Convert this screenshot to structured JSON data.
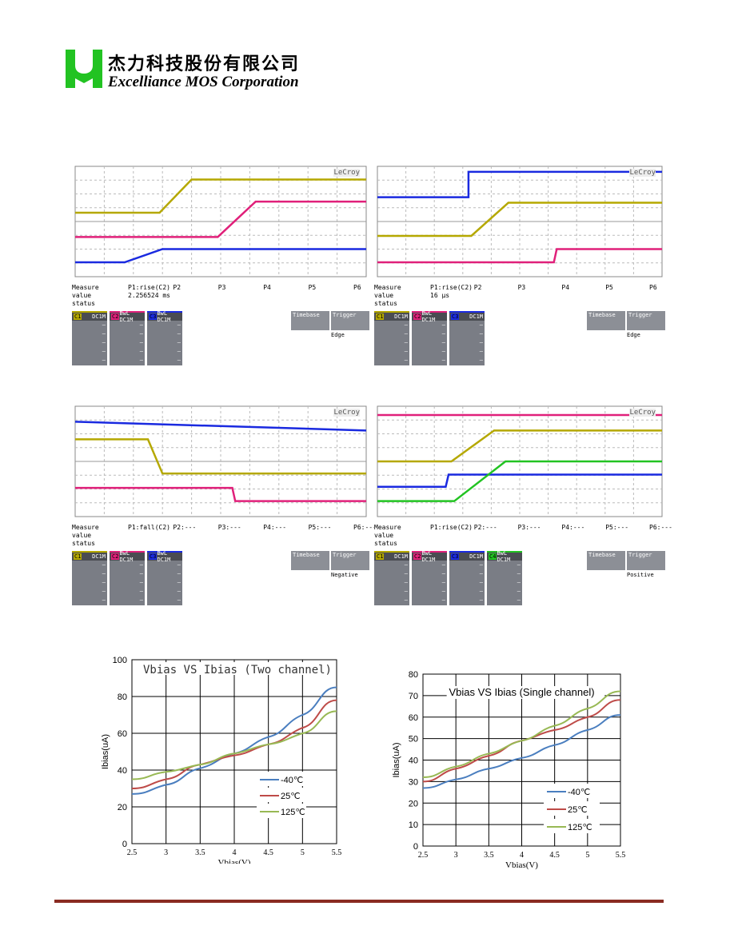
{
  "header": {
    "company_cn": "杰力科技股份有限公司",
    "company_en": "Excelliance MOS Corporation",
    "logo_letter": "M"
  },
  "scopes": [
    {
      "brand": "LeCroy",
      "measure": "Measure",
      "params": [
        "P1:rise(C2)",
        "P2",
        "P3",
        "P4",
        "P5",
        "P6"
      ],
      "value_label": "value",
      "value": "2.256524 ms",
      "status_label": "status",
      "channels": [
        {
          "id": "C1",
          "coupling": "DC1M",
          "color": "#b5a800"
        },
        {
          "id": "C2",
          "coupling": "BwL DC1M",
          "color": "#e0207a"
        },
        {
          "id": "C3",
          "coupling": "BwL DC1M",
          "color": "#1a2ae0"
        }
      ],
      "timebase": "Timebase",
      "trigger": "Trigger",
      "edge": "Edge"
    },
    {
      "brand": "LeCroy",
      "measure": "Measure",
      "params": [
        "P1:rise(C2)",
        "P2",
        "P3",
        "P4",
        "P5",
        "P6"
      ],
      "value_label": "value",
      "value": "16 µs",
      "status_label": "status",
      "channels": [
        {
          "id": "C1",
          "coupling": "DC1M",
          "color": "#b5a800"
        },
        {
          "id": "C2",
          "coupling": "BwL DC1M",
          "color": "#e0207a"
        },
        {
          "id": "C3",
          "coupling": "DC1M",
          "color": "#1a2ae0"
        }
      ],
      "timebase": "Timebase",
      "trigger": "Trigger",
      "edge": "Edge"
    },
    {
      "brand": "LeCroy",
      "measure": "Measure",
      "params": [
        "P1:fall(C2)",
        "P2:---",
        "P3:---",
        "P4:---",
        "P5:---",
        "P6:---"
      ],
      "value_label": "value",
      "value": "",
      "status_label": "status",
      "channels": [
        {
          "id": "C1",
          "coupling": "DC1M",
          "color": "#b5a800"
        },
        {
          "id": "C2",
          "coupling": "BwL DC1M",
          "color": "#e0207a"
        },
        {
          "id": "C3",
          "coupling": "BwL DC1M",
          "color": "#1a2ae0"
        }
      ],
      "timebase": "Timebase",
      "trigger": "Trigger",
      "edge": "Negative"
    },
    {
      "brand": "LeCroy",
      "measure": "Measure",
      "params": [
        "P1:rise(C2)",
        "P2:---",
        "P3:---",
        "P4:---",
        "P5:---",
        "P6:---"
      ],
      "value_label": "value",
      "value": "",
      "status_label": "status",
      "channels": [
        {
          "id": "C1",
          "coupling": "DC1M",
          "color": "#b5a800"
        },
        {
          "id": "C2",
          "coupling": "BwL DC1M",
          "color": "#e0207a"
        },
        {
          "id": "C3",
          "coupling": "DC1M",
          "color": "#1a2ae0"
        },
        {
          "id": "C4",
          "coupling": "BwL DC1M",
          "color": "#22c322"
        }
      ],
      "timebase": "Timebase",
      "trigger": "Trigger",
      "edge": "Positive"
    }
  ],
  "chart_data": [
    {
      "type": "line",
      "title": "Vbias VS Ibias (Two channel)",
      "xlabel": "Vbias(V)",
      "ylabel": "Ibias(uA)",
      "x": [
        2.5,
        3,
        3.5,
        4,
        4.5,
        5,
        5.5
      ],
      "x_ticks": [
        "2.5",
        "3",
        "3.5",
        "4",
        "4.5",
        "5",
        "5.5"
      ],
      "y_ticks": [
        "0",
        "20",
        "40",
        "60",
        "80",
        "100"
      ],
      "xlim": [
        2.5,
        5.5
      ],
      "ylim": [
        0,
        100
      ],
      "grid": true,
      "legend": "bottom-right",
      "series": [
        {
          "name": "-40℃",
          "color": "#4a7ebf",
          "values": [
            27,
            32,
            41,
            49,
            58,
            70,
            85
          ]
        },
        {
          "name": "25℃",
          "color": "#be4b48",
          "values": [
            30,
            35,
            43,
            48,
            54,
            63,
            78
          ]
        },
        {
          "name": "125℃",
          "color": "#98b954",
          "values": [
            35,
            39,
            43,
            49,
            54,
            60,
            72
          ]
        }
      ]
    },
    {
      "type": "line",
      "title": "Vbias VS Ibias (Single channel)",
      "xlabel": "Vbias(V)",
      "ylabel": "Ibias(uA)",
      "x": [
        2.5,
        3,
        3.5,
        4,
        4.5,
        5,
        5.5
      ],
      "x_ticks": [
        "2.5",
        "3",
        "3.5",
        "4",
        "4.5",
        "5",
        "5.5"
      ],
      "y_ticks": [
        "0",
        "10",
        "20",
        "30",
        "40",
        "50",
        "60",
        "70",
        "80"
      ],
      "xlim": [
        2.5,
        5.5
      ],
      "ylim": [
        0,
        80
      ],
      "grid": true,
      "legend": "bottom-right",
      "series": [
        {
          "name": "-40℃",
          "color": "#4a7ebf",
          "values": [
            27,
            31,
            36,
            41,
            47,
            54,
            61
          ]
        },
        {
          "name": "25℃",
          "color": "#be4b48",
          "values": [
            30,
            36,
            42,
            49,
            54,
            60,
            68
          ]
        },
        {
          "name": "125℃",
          "color": "#98b954",
          "values": [
            32,
            37,
            43,
            49,
            56,
            64,
            72
          ]
        }
      ]
    }
  ]
}
